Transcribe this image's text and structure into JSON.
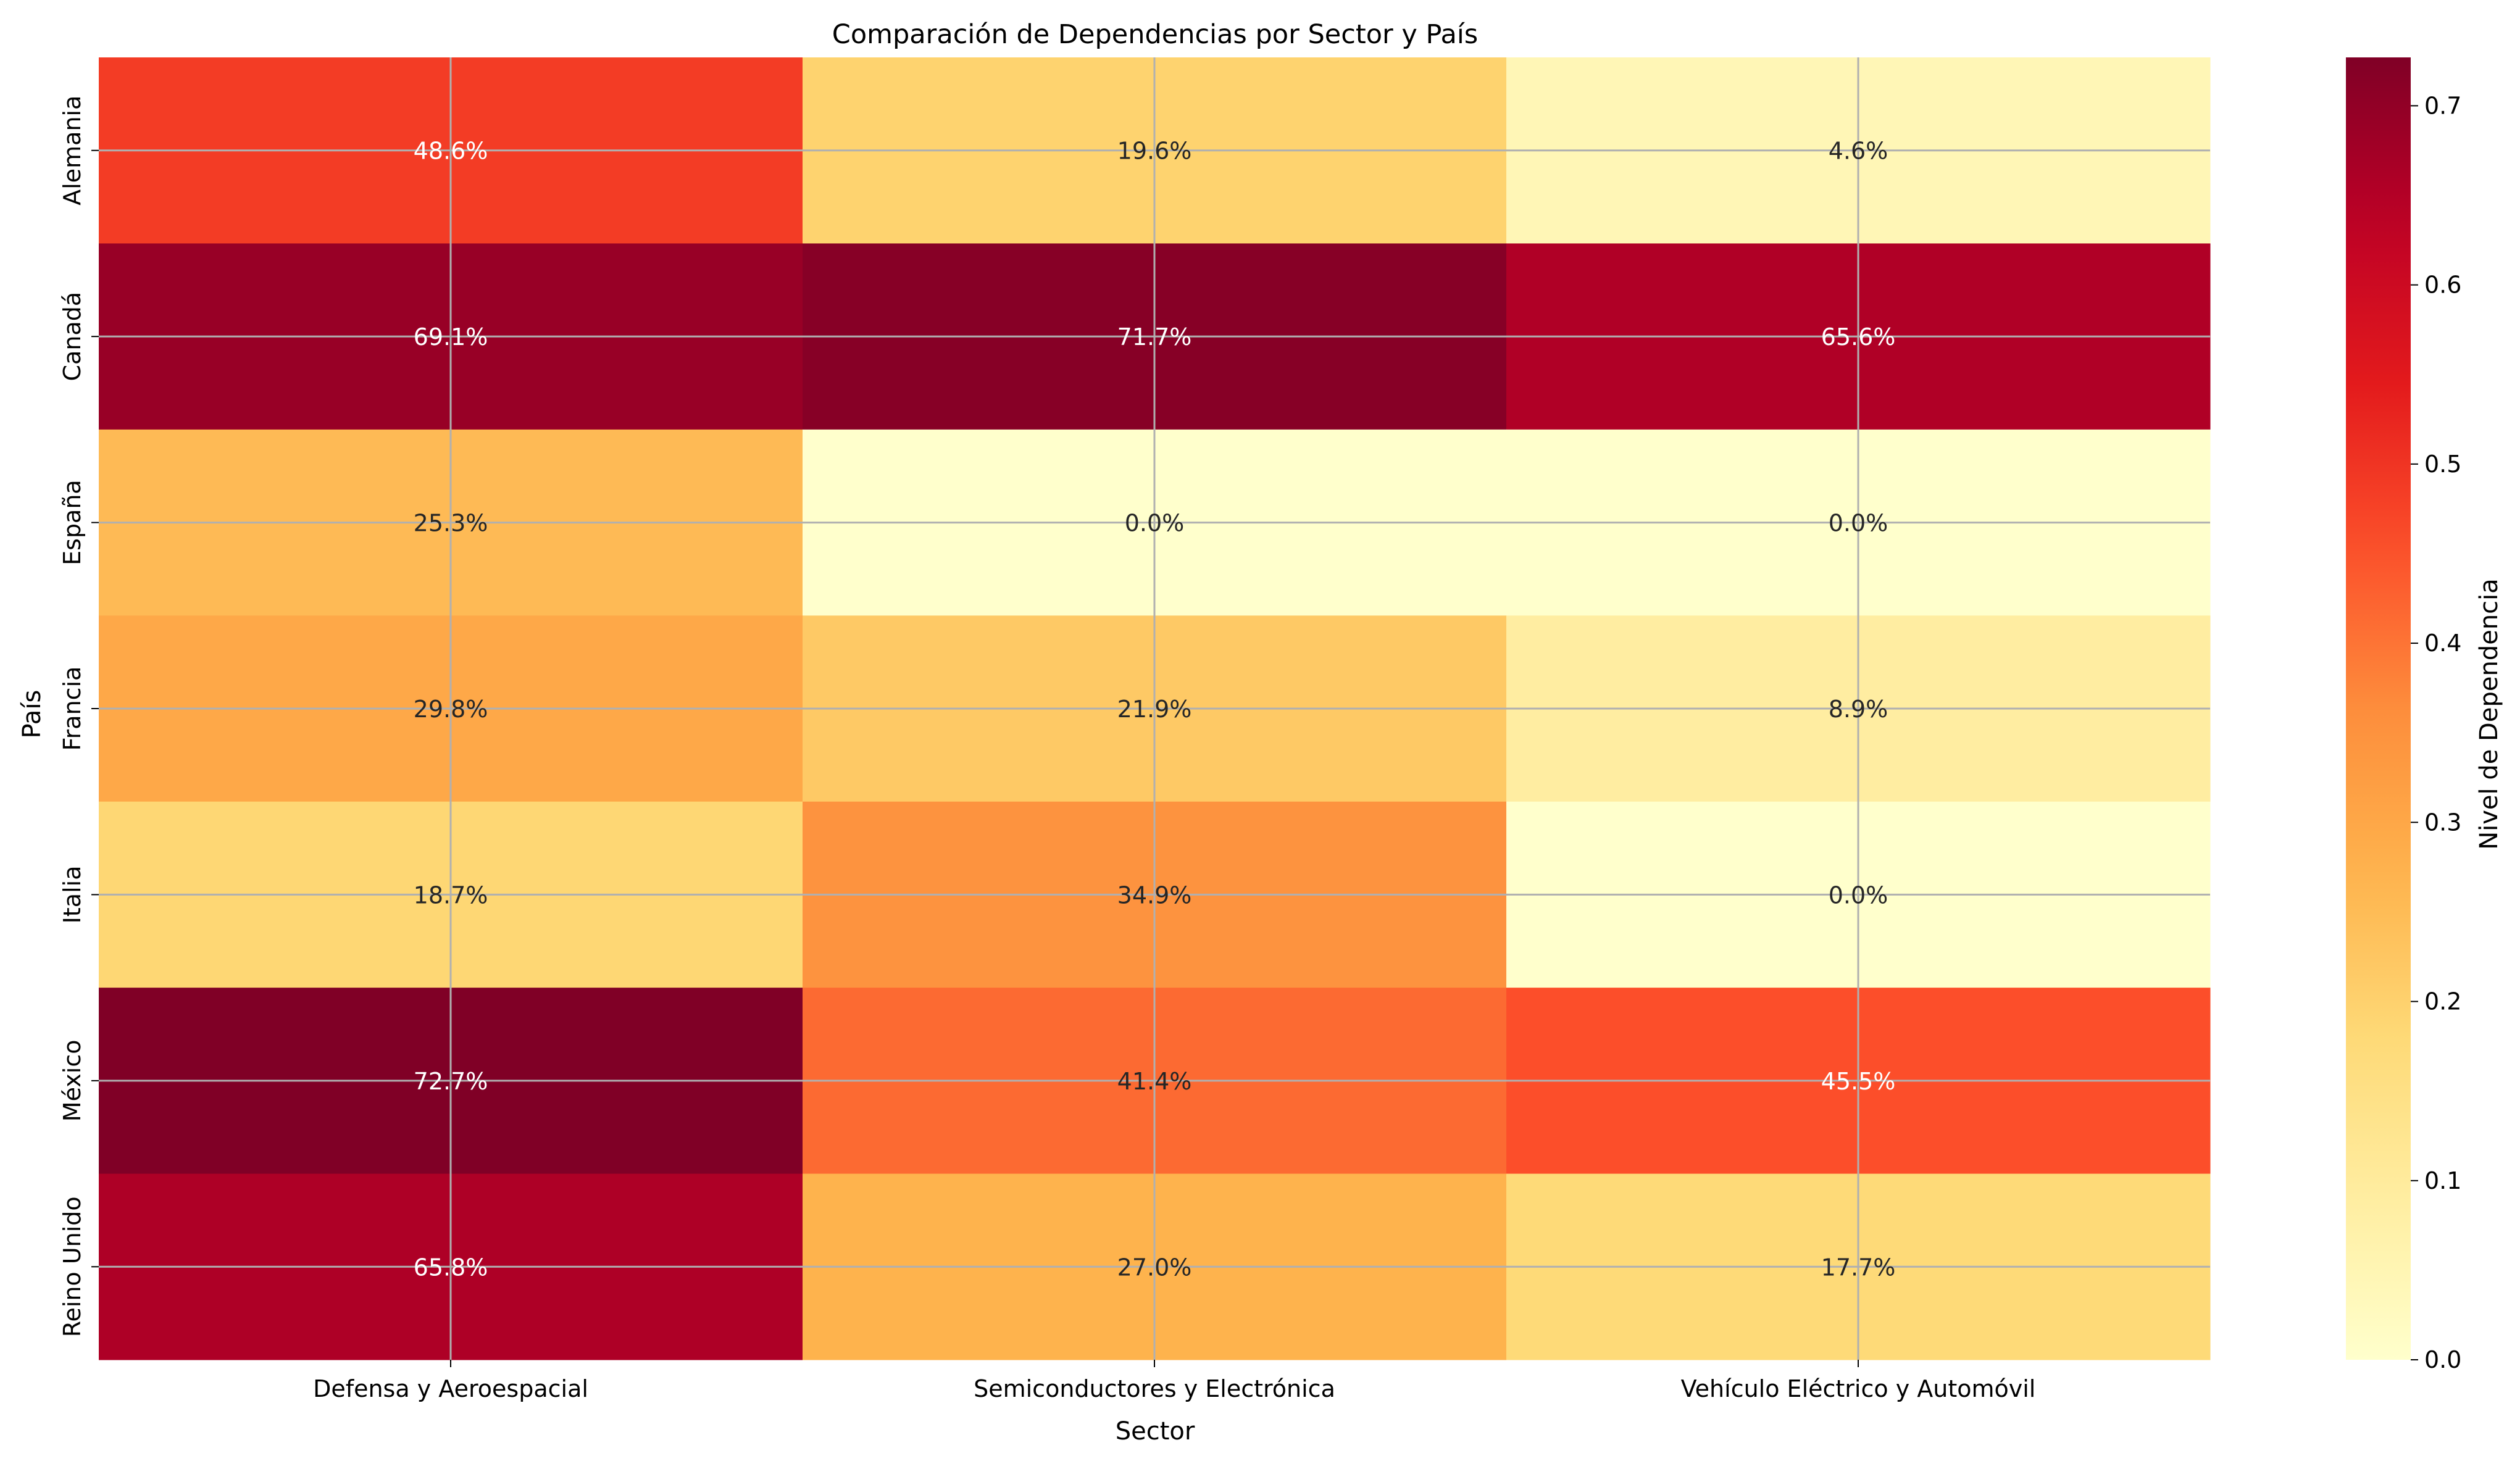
{
  "chart_data": {
    "type": "heatmap",
    "title": "Comparación de Dependencias por Sector y País",
    "xlabel": "Sector",
    "ylabel": "País",
    "x_categories": [
      "Defensa y Aeroespacial",
      "Semiconductores y Electrónica",
      "Vehículo Eléctrico y Automóvil"
    ],
    "y_categories": [
      "Alemania",
      "Canadá",
      "España",
      "Francia",
      "Italia",
      "México",
      "Reino Unido"
    ],
    "values": [
      [
        0.486,
        0.196,
        0.046
      ],
      [
        0.691,
        0.717,
        0.656
      ],
      [
        0.253,
        0.0,
        0.0
      ],
      [
        0.298,
        0.219,
        0.089
      ],
      [
        0.187,
        0.349,
        0.0
      ],
      [
        0.727,
        0.414,
        0.455
      ],
      [
        0.658,
        0.27,
        0.177
      ]
    ],
    "annotations": [
      [
        "48.6%",
        "19.6%",
        "4.6%"
      ],
      [
        "69.1%",
        "71.7%",
        "65.6%"
      ],
      [
        "25.3%",
        "0.0%",
        "0.0%"
      ],
      [
        "29.8%",
        "21.9%",
        "8.9%"
      ],
      [
        "18.7%",
        "34.9%",
        "0.0%"
      ],
      [
        "72.7%",
        "41.4%",
        "45.5%"
      ],
      [
        "65.8%",
        "27.0%",
        "17.7%"
      ]
    ],
    "colormap": "YlOrRd",
    "colorbar": {
      "label": "Nivel de Dependencia",
      "range": [
        0.0,
        0.727
      ],
      "ticks": [
        0.0,
        0.1,
        0.2,
        0.3,
        0.4,
        0.5,
        0.6,
        0.7
      ],
      "tick_labels": [
        "0.0",
        "0.1",
        "0.2",
        "0.3",
        "0.4",
        "0.5",
        "0.6",
        "0.7"
      ]
    },
    "grid": true
  }
}
